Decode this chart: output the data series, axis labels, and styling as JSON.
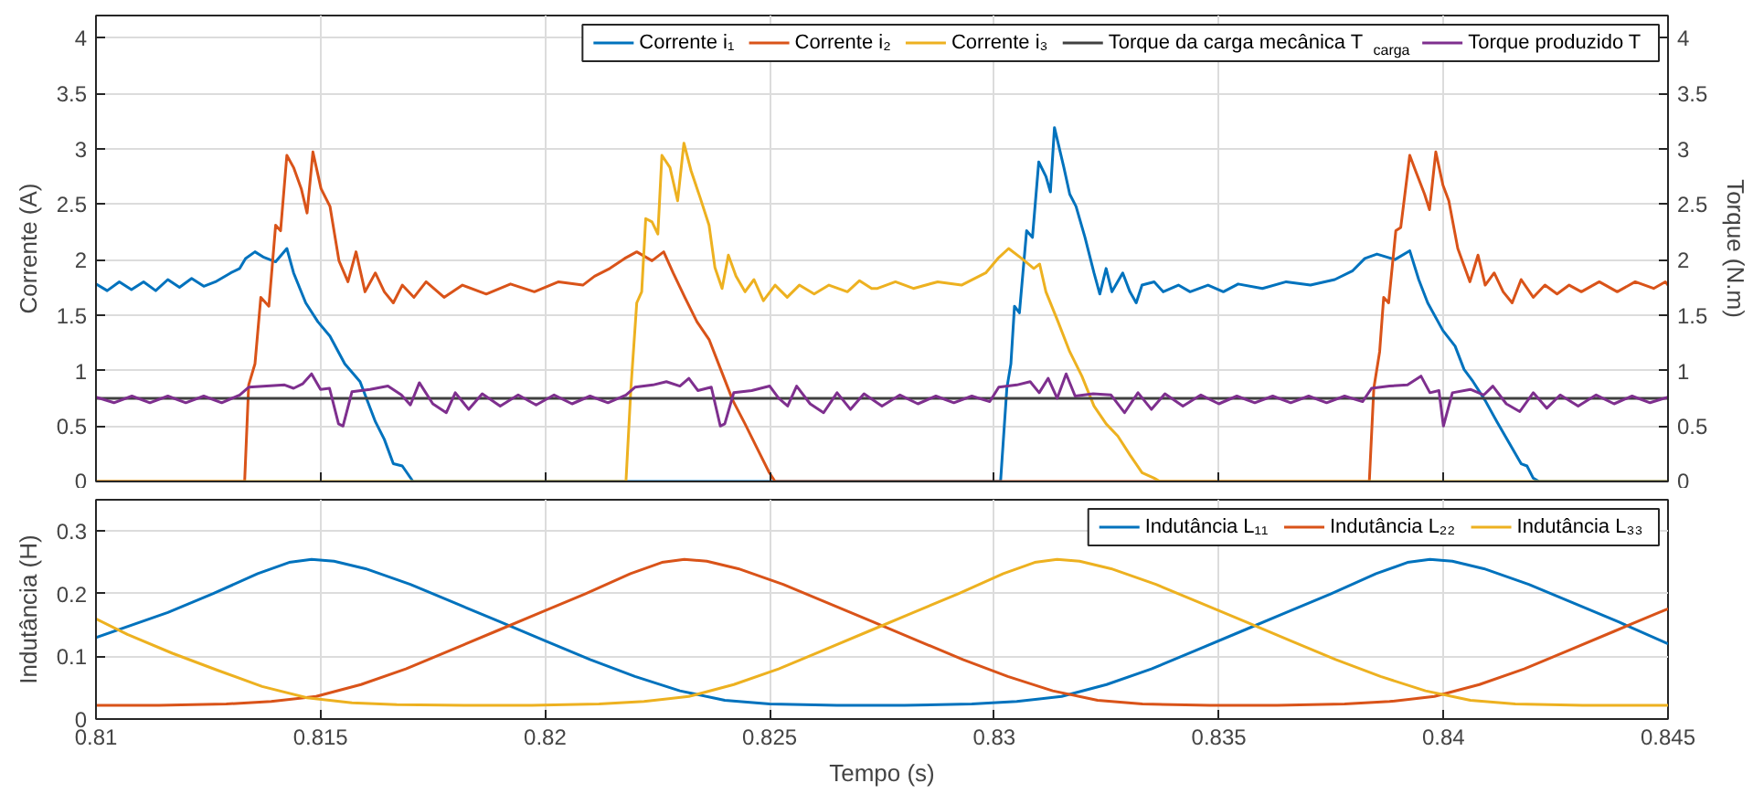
{
  "chart_data": [
    {
      "type": "line",
      "ylabel": "Corrente (A)",
      "y2label": "Torque (N.m)",
      "xlim": [
        0.81,
        0.845
      ],
      "xticks": [
        0.81,
        0.815,
        0.82,
        0.825,
        0.83,
        0.835,
        0.84,
        0.845
      ],
      "ylim": [
        0,
        4.2
      ],
      "yticks": [
        0,
        0.5,
        1,
        1.5,
        2,
        2.5,
        3,
        3.5,
        4
      ],
      "y2lim": [
        0,
        4.2
      ],
      "y2ticks": [
        0,
        0.5,
        1,
        1.5,
        2,
        2.5,
        3,
        3.5,
        4
      ],
      "grid": true,
      "legend": "top right",
      "tick_labels": "y",
      "line_style": "solid",
      "series": [
        {
          "name": "Corrente i₁",
          "color": "#0072bd",
          "x": [
            0.81,
            0.81025,
            0.81052,
            0.81079,
            0.81106,
            0.81133,
            0.8116,
            0.81186,
            0.81213,
            0.8124,
            0.81266,
            0.813,
            0.8132,
            0.81333,
            0.81354,
            0.81374,
            0.814,
            0.81425,
            0.8144,
            0.81467,
            0.81494,
            0.81521,
            0.81554,
            0.81588,
            0.81622,
            0.81642,
            0.81662,
            0.81682,
            0.81706,
            0.83014,
            0.83028,
            0.83037,
            0.83045,
            0.83056,
            0.83072,
            0.83085,
            0.83099,
            0.83115,
            0.83125,
            0.83134,
            0.83155,
            0.83168,
            0.83182,
            0.83202,
            0.83222,
            0.83235,
            0.83249,
            0.83262,
            0.83286,
            0.83302,
            0.83316,
            0.83329,
            0.83356,
            0.83376,
            0.8341,
            0.83436,
            0.83476,
            0.8351,
            0.83543,
            0.83597,
            0.8365,
            0.83704,
            0.83758,
            0.83798,
            0.83825,
            0.83852,
            0.83892,
            0.83925,
            0.83945,
            0.83965,
            0.83999,
            0.84026,
            0.84046,
            0.84066,
            0.84093,
            0.84119,
            0.84146,
            0.84173,
            0.84186,
            0.842,
            0.84213,
            0.845
          ],
          "values": [
            1.78,
            1.72,
            1.8,
            1.73,
            1.8,
            1.72,
            1.82,
            1.75,
            1.83,
            1.76,
            1.8,
            1.88,
            1.92,
            2.01,
            2.07,
            2.02,
            1.98,
            2.1,
            1.88,
            1.61,
            1.44,
            1.31,
            1.06,
            0.9,
            0.54,
            0.38,
            0.16,
            0.14,
            0,
            0,
            0.84,
            1.06,
            1.58,
            1.52,
            2.26,
            2.2,
            2.88,
            2.75,
            2.61,
            3.19,
            2.83,
            2.59,
            2.48,
            2.2,
            1.88,
            1.69,
            1.92,
            1.71,
            1.88,
            1.71,
            1.61,
            1.77,
            1.8,
            1.71,
            1.77,
            1.71,
            1.77,
            1.71,
            1.78,
            1.74,
            1.8,
            1.77,
            1.82,
            1.9,
            2.01,
            2.05,
            2.0,
            2.08,
            1.82,
            1.61,
            1.36,
            1.22,
            1.01,
            0.9,
            0.73,
            0.54,
            0.35,
            0.16,
            0.14,
            0.03,
            0,
            0
          ]
        },
        {
          "name": "Corrente i₂",
          "color": "#d95319",
          "x": [
            0.81,
            0.81331,
            0.8134,
            0.81354,
            0.81367,
            0.81385,
            0.814,
            0.81411,
            0.81425,
            0.8144,
            0.81457,
            0.8147,
            0.81483,
            0.81501,
            0.81521,
            0.81541,
            0.81561,
            0.81579,
            0.81599,
            0.81622,
            0.81642,
            0.81662,
            0.81682,
            0.81708,
            0.81735,
            0.81775,
            0.81816,
            0.81869,
            0.81923,
            0.81976,
            0.8203,
            0.82084,
            0.8211,
            0.82144,
            0.82177,
            0.82204,
            0.82238,
            0.82264,
            0.82285,
            0.82311,
            0.82338,
            0.82365,
            0.82391,
            0.82418,
            0.82445,
            0.82472,
            0.82499,
            0.82512,
            0.83835,
            0.83845,
            0.83858,
            0.83867,
            0.83878,
            0.83894,
            0.83905,
            0.83925,
            0.83938,
            0.83958,
            0.83969,
            0.83983,
            0.83999,
            0.84012,
            0.84032,
            0.84059,
            0.84077,
            0.84093,
            0.84113,
            0.84133,
            0.84153,
            0.84173,
            0.842,
            0.84226,
            0.84253,
            0.8428,
            0.84307,
            0.84347,
            0.84387,
            0.84427,
            0.84468,
            0.84494,
            0.845
          ],
          "values": [
            0,
            0,
            0.87,
            1.06,
            1.66,
            1.58,
            2.31,
            2.26,
            2.94,
            2.83,
            2.64,
            2.42,
            2.97,
            2.64,
            2.48,
            1.99,
            1.8,
            2.07,
            1.71,
            1.88,
            1.71,
            1.61,
            1.77,
            1.66,
            1.8,
            1.66,
            1.77,
            1.69,
            1.78,
            1.71,
            1.8,
            1.77,
            1.85,
            1.92,
            2.01,
            2.07,
            1.99,
            2.07,
            1.88,
            1.66,
            1.44,
            1.28,
            1.01,
            0.73,
            0.52,
            0.3,
            0.08,
            0,
            0,
            0.84,
            1.17,
            1.66,
            1.61,
            2.26,
            2.29,
            2.94,
            2.8,
            2.59,
            2.45,
            2.97,
            2.67,
            2.53,
            2.1,
            1.8,
            2.04,
            1.77,
            1.88,
            1.71,
            1.61,
            1.82,
            1.66,
            1.77,
            1.69,
            1.77,
            1.71,
            1.8,
            1.71,
            1.8,
            1.74,
            1.8,
            1.77
          ]
        },
        {
          "name": "Corrente i₃",
          "color": "#edb120",
          "x": [
            0.81,
            0.8218,
            0.82191,
            0.82204,
            0.82215,
            0.82224,
            0.82238,
            0.82251,
            0.8226,
            0.82278,
            0.82295,
            0.82309,
            0.82325,
            0.82345,
            0.82365,
            0.82378,
            0.82394,
            0.82408,
            0.82425,
            0.82445,
            0.82465,
            0.82486,
            0.82512,
            0.82539,
            0.82566,
            0.82599,
            0.82632,
            0.82673,
            0.827,
            0.82727,
            0.8274,
            0.8278,
            0.8282,
            0.82874,
            0.82927,
            0.82981,
            0.83008,
            0.83032,
            0.83061,
            0.83088,
            0.83101,
            0.83115,
            0.83142,
            0.83168,
            0.83195,
            0.83222,
            0.83249,
            0.83275,
            0.83302,
            0.83329,
            0.83356,
            0.83369,
            0.845
          ],
          "values": [
            0,
            0,
            0.84,
            1.61,
            1.71,
            2.37,
            2.34,
            2.23,
            2.94,
            2.83,
            2.53,
            3.05,
            2.8,
            2.56,
            2.31,
            1.93,
            1.74,
            2.04,
            1.85,
            1.71,
            1.82,
            1.63,
            1.77,
            1.66,
            1.77,
            1.69,
            1.77,
            1.71,
            1.81,
            1.74,
            1.74,
            1.8,
            1.74,
            1.8,
            1.77,
            1.88,
            2.01,
            2.1,
            2.01,
            1.92,
            1.96,
            1.71,
            1.44,
            1.17,
            0.95,
            0.68,
            0.52,
            0.41,
            0.24,
            0.08,
            0.03,
            0,
            0
          ]
        },
        {
          "name": "Torque da carga mecânica T$_{carga}$",
          "color": "#404040",
          "x": [
            0.81,
            0.845
          ],
          "values": [
            0.75,
            0.75
          ]
        },
        {
          "name": "Torque produzido T",
          "color": "#7e2f8e",
          "x": [
            0.81,
            0.8104,
            0.8108,
            0.8112,
            0.8116,
            0.812,
            0.8124,
            0.8128,
            0.8132,
            0.8134,
            0.8138,
            0.8142,
            0.8144,
            0.8146,
            0.8148,
            0.815,
            0.8152,
            0.8154,
            0.8155,
            0.8157,
            0.8161,
            0.8165,
            0.8168,
            0.817,
            0.8172,
            0.8175,
            0.8178,
            0.818,
            0.8183,
            0.8186,
            0.819,
            0.8194,
            0.8198,
            0.8202,
            0.8206,
            0.821,
            0.8214,
            0.8218,
            0.822,
            0.8224,
            0.8227,
            0.823,
            0.8232,
            0.8234,
            0.8237,
            0.8239,
            0.824,
            0.8242,
            0.8246,
            0.825,
            0.8252,
            0.8254,
            0.8256,
            0.8259,
            0.8262,
            0.8265,
            0.8268,
            0.8271,
            0.8275,
            0.8279,
            0.8283,
            0.8287,
            0.8291,
            0.8295,
            0.8299,
            0.8301,
            0.8305,
            0.8308,
            0.831,
            0.8312,
            0.8314,
            0.8316,
            0.8318,
            0.8322,
            0.8326,
            0.8329,
            0.8332,
            0.8335,
            0.8338,
            0.8342,
            0.8346,
            0.835,
            0.8354,
            0.8358,
            0.8362,
            0.8366,
            0.837,
            0.8374,
            0.8378,
            0.8382,
            0.8384,
            0.8388,
            0.8392,
            0.8395,
            0.8397,
            0.8399,
            0.84,
            0.8402,
            0.8406,
            0.8409,
            0.8411,
            0.8414,
            0.8417,
            0.842,
            0.8423,
            0.8426,
            0.843,
            0.8434,
            0.8438,
            0.8442,
            0.8446,
            0.845
          ],
          "values": [
            0.76,
            0.71,
            0.77,
            0.71,
            0.77,
            0.71,
            0.77,
            0.71,
            0.78,
            0.85,
            0.86,
            0.87,
            0.84,
            0.88,
            0.97,
            0.83,
            0.84,
            0.52,
            0.5,
            0.81,
            0.83,
            0.86,
            0.78,
            0.69,
            0.89,
            0.7,
            0.62,
            0.8,
            0.65,
            0.79,
            0.68,
            0.78,
            0.69,
            0.78,
            0.7,
            0.77,
            0.71,
            0.78,
            0.85,
            0.87,
            0.9,
            0.86,
            0.93,
            0.82,
            0.85,
            0.5,
            0.52,
            0.8,
            0.82,
            0.86,
            0.75,
            0.68,
            0.86,
            0.7,
            0.62,
            0.8,
            0.65,
            0.79,
            0.68,
            0.78,
            0.7,
            0.77,
            0.71,
            0.77,
            0.72,
            0.85,
            0.87,
            0.9,
            0.8,
            0.93,
            0.75,
            0.97,
            0.77,
            0.79,
            0.78,
            0.62,
            0.8,
            0.65,
            0.79,
            0.68,
            0.78,
            0.7,
            0.77,
            0.71,
            0.77,
            0.71,
            0.77,
            0.71,
            0.77,
            0.72,
            0.84,
            0.86,
            0.87,
            0.95,
            0.8,
            0.82,
            0.5,
            0.8,
            0.83,
            0.78,
            0.86,
            0.7,
            0.63,
            0.8,
            0.66,
            0.78,
            0.68,
            0.78,
            0.7,
            0.77,
            0.71,
            0.76
          ]
        }
      ]
    },
    {
      "type": "line",
      "xlabel": "Tempo (s)",
      "ylabel": "Indutância (H)",
      "xlim": [
        0.81,
        0.845
      ],
      "xticks": [
        0.81,
        0.815,
        0.82,
        0.825,
        0.83,
        0.835,
        0.84,
        0.845
      ],
      "ylim": [
        0,
        0.35
      ],
      "yticks": [
        0,
        0.1,
        0.2,
        0.3
      ],
      "grid": true,
      "legend": "top right",
      "line_style": "solid",
      "series": [
        {
          "name": "Indutância L₁₁",
          "color": "#0072bd",
          "x": [
            0.81,
            0.8116,
            0.8126,
            0.8136,
            0.8143,
            0.8148,
            0.8153,
            0.816,
            0.817,
            0.818,
            0.819,
            0.82,
            0.821,
            0.822,
            0.823,
            0.824,
            0.825,
            0.8265,
            0.828,
            0.8295,
            0.8305,
            0.8315,
            0.8325,
            0.8335,
            0.8345,
            0.8355,
            0.8365,
            0.8375,
            0.8385,
            0.8392,
            0.8397,
            0.8402,
            0.8409,
            0.8419,
            0.8429,
            0.8439,
            0.845
          ],
          "values": [
            0.13,
            0.17,
            0.2,
            0.232,
            0.25,
            0.255,
            0.252,
            0.24,
            0.215,
            0.185,
            0.155,
            0.125,
            0.095,
            0.068,
            0.045,
            0.03,
            0.024,
            0.022,
            0.022,
            0.024,
            0.028,
            0.036,
            0.055,
            0.08,
            0.11,
            0.14,
            0.17,
            0.2,
            0.232,
            0.25,
            0.255,
            0.252,
            0.24,
            0.215,
            0.185,
            0.155,
            0.12
          ]
        },
        {
          "name": "Indutância L₂₂",
          "color": "#d95319",
          "x": [
            0.81,
            0.8114,
            0.8129,
            0.8139,
            0.8149,
            0.8159,
            0.8169,
            0.8179,
            0.8189,
            0.8199,
            0.8209,
            0.8219,
            0.8226,
            0.8231,
            0.8236,
            0.8243,
            0.8253,
            0.8263,
            0.8273,
            0.8283,
            0.8293,
            0.8303,
            0.8313,
            0.8323,
            0.8333,
            0.8348,
            0.8363,
            0.8378,
            0.8388,
            0.8398,
            0.8408,
            0.8418,
            0.8428,
            0.8438,
            0.8448,
            0.845
          ],
          "values": [
            0.022,
            0.022,
            0.024,
            0.028,
            0.036,
            0.055,
            0.08,
            0.11,
            0.14,
            0.17,
            0.2,
            0.232,
            0.25,
            0.255,
            0.252,
            0.24,
            0.215,
            0.185,
            0.155,
            0.125,
            0.095,
            0.068,
            0.045,
            0.03,
            0.024,
            0.022,
            0.022,
            0.024,
            0.028,
            0.036,
            0.055,
            0.08,
            0.11,
            0.14,
            0.17,
            0.176
          ]
        },
        {
          "name": "Indutância L₃₃",
          "color": "#edb120",
          "x": [
            0.81,
            0.8107,
            0.8117,
            0.8127,
            0.8137,
            0.8147,
            0.8157,
            0.8167,
            0.8182,
            0.8197,
            0.8212,
            0.8222,
            0.8232,
            0.8242,
            0.8252,
            0.8262,
            0.8272,
            0.8282,
            0.8292,
            0.8302,
            0.8309,
            0.8314,
            0.8319,
            0.8326,
            0.8336,
            0.8346,
            0.8356,
            0.8366,
            0.8376,
            0.8386,
            0.8396,
            0.8406,
            0.8416,
            0.8431,
            0.845
          ],
          "values": [
            0.16,
            0.135,
            0.105,
            0.078,
            0.052,
            0.034,
            0.026,
            0.023,
            0.022,
            0.022,
            0.024,
            0.028,
            0.036,
            0.055,
            0.08,
            0.11,
            0.14,
            0.17,
            0.2,
            0.232,
            0.25,
            0.255,
            0.252,
            0.24,
            0.215,
            0.185,
            0.155,
            0.125,
            0.095,
            0.068,
            0.045,
            0.03,
            0.024,
            0.022,
            0.022
          ]
        }
      ]
    }
  ]
}
